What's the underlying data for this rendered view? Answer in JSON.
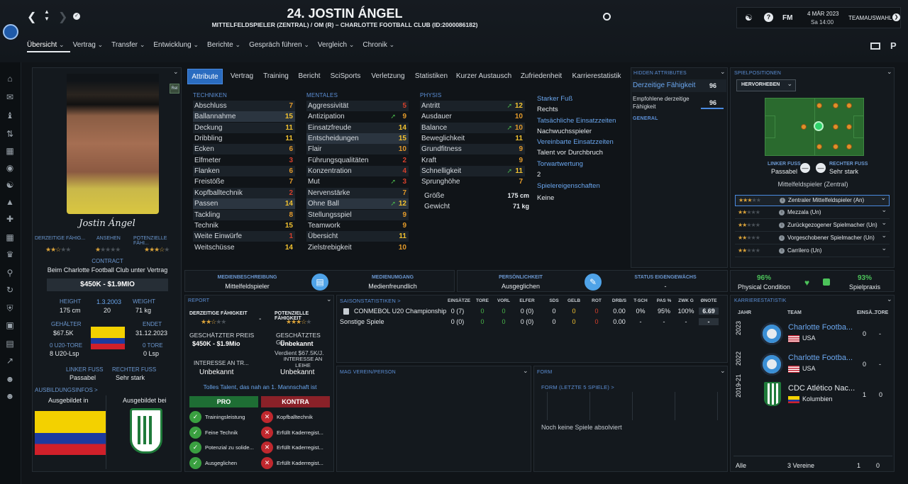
{
  "header": {
    "title": "24. JOSTIN ÁNGEL",
    "subtitle": "MITTELFELDSPIELER (ZENTRAL) / OM (R) – CHARLOTTE FOOTBALL CLUB (ID:2000086182)",
    "fm_label": "FM",
    "date": "4 MÄR 2023",
    "time": "Sa 14:00",
    "team_select": "TEAMAUSWAHL",
    "menu": [
      "Übersicht",
      "Vertrag",
      "Transfer",
      "Entwicklung",
      "Berichte",
      "Gespräch führen",
      "Vergleich",
      "Chronik"
    ]
  },
  "profile": {
    "rel_badge": "Rel",
    "signature": "Jostin Ángel",
    "current_ability_label": "DERZEITIGE FÄHIG...",
    "reputation_label": "ANSEHEN",
    "potential_label": "POTENZIELLE FÄHI...",
    "contract_label": "CONTRACT",
    "contract_text": "Beim Charlotte Football Club unter Vertrag",
    "value": "$450K - $1.9MIO",
    "height_label": "HEIGHT",
    "height": "175 cm",
    "dob": "1.3.2003",
    "age": "20",
    "weight_label": "WEIGHT",
    "weight": "71 kg",
    "wage_label": "GEHÄLTER",
    "wage": "$67.5K",
    "end_label": "ENDET",
    "end": "31.12.2023",
    "u20_goals_label": "0 U20-TORE",
    "u20_apps": "8 U20-Lsp",
    "goals_label": "0 TORE",
    "apps": "0 Lsp",
    "left_foot_label": "LINKER FUSS",
    "left_foot": "Passabel",
    "right_foot_label": "RECHTER FUSS",
    "right_foot": "Sehr stark",
    "training_info_label": "AUSBILDUNGSINFOS >",
    "trained_in": "Ausgebildet in",
    "trained_at": "Ausgebildet bei"
  },
  "tabs": [
    "Attribute",
    "Vertrag",
    "Training",
    "Bericht",
    "SciSports",
    "Verletzung",
    "Statistiken",
    "Kurzer Austausch",
    "Zufriedenheit",
    "Karrierestatistik"
  ],
  "attributes": {
    "technik_label": "TECHNIKEN",
    "technik": [
      {
        "name": "Abschluss",
        "value": "7"
      },
      {
        "name": "Ballannahme",
        "value": "15"
      },
      {
        "name": "Deckung",
        "value": "11"
      },
      {
        "name": "Dribbling",
        "value": "11"
      },
      {
        "name": "Ecken",
        "value": "6"
      },
      {
        "name": "Elfmeter",
        "value": "3"
      },
      {
        "name": "Flanken",
        "value": "6"
      },
      {
        "name": "Freistöße",
        "value": "7"
      },
      {
        "name": "Kopfballtechnik",
        "value": "2"
      },
      {
        "name": "Passen",
        "value": "14"
      },
      {
        "name": "Tackling",
        "value": "8"
      },
      {
        "name": "Technik",
        "value": "15"
      },
      {
        "name": "Weite Einwürfe",
        "value": "1"
      },
      {
        "name": "Weitschüsse",
        "value": "14"
      }
    ],
    "mental_label": "MENTALES",
    "mental": [
      {
        "name": "Aggressivität",
        "value": "5"
      },
      {
        "name": "Antizipation",
        "value": "9"
      },
      {
        "name": "Einsatzfreude",
        "value": "14"
      },
      {
        "name": "Entscheidungen",
        "value": "15"
      },
      {
        "name": "Flair",
        "value": "10"
      },
      {
        "name": "Führungsqualitäten",
        "value": "2"
      },
      {
        "name": "Konzentration",
        "value": "4"
      },
      {
        "name": "Mut",
        "value": "3"
      },
      {
        "name": "Nervenstärke",
        "value": "7"
      },
      {
        "name": "Ohne Ball",
        "value": "12"
      },
      {
        "name": "Stellungsspiel",
        "value": "9"
      },
      {
        "name": "Teamwork",
        "value": "9"
      },
      {
        "name": "Übersicht",
        "value": "11"
      },
      {
        "name": "Zielstrebigkeit",
        "value": "10"
      }
    ],
    "physis_label": "PHYSIS",
    "physis": [
      {
        "name": "Antritt",
        "value": "12"
      },
      {
        "name": "Ausdauer",
        "value": "10"
      },
      {
        "name": "Balance",
        "value": "10"
      },
      {
        "name": "Beweglichkeit",
        "value": "11"
      },
      {
        "name": "Grundfitness",
        "value": "9"
      },
      {
        "name": "Kraft",
        "value": "9"
      },
      {
        "name": "Schnelligkeit",
        "value": "11"
      },
      {
        "name": "Sprunghöhe",
        "value": "7"
      }
    ],
    "size_label": "Größe",
    "size": "175 cm",
    "weight_label": "Gewicht",
    "weight": "71 kg",
    "strong_foot_label": "Starker Fuß",
    "strong_foot": "Rechts",
    "actual_apps_label": "Tatsächliche Einsatzzeiten",
    "actual_apps": "Nachwuchsspieler",
    "agreed_apps_label": "Vereinbarte Einsatzzeiten",
    "agreed_apps": "Talent vor Durchbruch",
    "gk_rating_label": "Torwartwertung",
    "gk_rating": "2",
    "traits_label": "Spielereigenschaften",
    "traits": "Keine"
  },
  "hidden": {
    "label": "HIDDEN ATTRIBUTES",
    "current_label": "Derzeitige Fähigkeit",
    "current": "96",
    "rec_label": "Empfohlene derzeitige Fähigkeit",
    "rec": "96",
    "general": "GENERAL"
  },
  "positions": {
    "label": "SPIELPOSITIONEN",
    "highlight_btn": "HERVORHEBEN",
    "left_foot_label": "LINKER FUSS",
    "left_foot": "Passabel",
    "right_foot_label": "RECHTER FUSS",
    "right_foot": "Sehr stark",
    "role": "Mittelfeldspieler (Zentral)",
    "roles": [
      "Zentraler Mittelfeldspieler (An)",
      "Mezzala (Un)",
      "Zurückgezogener Spielmacher (Un)",
      "Vorgeschobener Spielmacher (Un)",
      "Carrilero (Un)"
    ]
  },
  "media": {
    "desc_label": "MEDIENBESCHREIBUNG",
    "desc": "Mittelfeldspieler",
    "handling_label": "MEDIENUMGANG",
    "handling": "Medienfreundlich",
    "personality_label": "PERSÖNLICHKEIT",
    "personality": "Ausgeglichen",
    "homegrown_label": "STATUS EIGENGEWÄCHS",
    "homegrown": "-"
  },
  "condition": {
    "physical": "96%",
    "physical_label": "Physical Condition",
    "practice": "93%",
    "practice_label": "Spielpraxis"
  },
  "report": {
    "label": "REPORT",
    "ca_label": "DERZEITIGE FÄHIGKEIT",
    "pa_label": "POTENZIELLE FÄHIGKEIT",
    "dash": "-",
    "est_price_label": "GESCHÄTZTER PREIS",
    "est_price": "$450K - $1.9Mio",
    "est_wage_label": "GESCHÄTZTES GE...",
    "est_wage": "Unbekannt",
    "est_wage_sub": "Verdient $67.5K/J.",
    "interest_transfer_label": "INTERESSE AN TR...",
    "interest_transfer": "Unbekannt",
    "interest_loan_label": "INTERESSE AN LEIHE",
    "interest_loan": "Unbekannt",
    "summary": "Tolles Talent, das nah an 1. Mannschaft ist",
    "pro_label": "PRO",
    "contra_label": "KONTRA",
    "pro": [
      "Trainingsleistung",
      "Feine Technik",
      "Potenzial zu solide...",
      "Ausgeglichen"
    ],
    "contra": [
      "Kopfballtechnik",
      "Erfüllt Kaderregist...",
      "Erfüllt Kaderregist...",
      "Erfüllt Kaderregist..."
    ]
  },
  "season": {
    "label": "SAISONSTATISTIKEN >",
    "headers": [
      "EINSÄTZE",
      "TORE",
      "VORL",
      "ELFER",
      "SDS",
      "GELB",
      "ROT",
      "DRB/S",
      "T-SCH",
      "PAS %",
      "ZWK G",
      "ØNOTE"
    ],
    "rows": [
      {
        "name": "CONMEBOL U20 Championship",
        "values": [
          "0 (7)",
          "0",
          "0",
          "0 (0)",
          "0",
          "0",
          "0",
          "0.00",
          "0%",
          "95%",
          "100%",
          "6.69"
        ]
      },
      {
        "name": "Sonstige Spiele",
        "values": [
          "0 (0)",
          "0",
          "0",
          "0 (0)",
          "0",
          "0",
          "0",
          "0.00",
          "-",
          "-",
          "-",
          "-"
        ]
      }
    ]
  },
  "fav": {
    "label": "MAG VEREIN/PERSON"
  },
  "form": {
    "label": "FORM",
    "sub": "FORM (LETZTE 5 SPIELE) >",
    "empty": "Noch keine Spiele absolviert"
  },
  "career": {
    "label": "KARRIERESTATISTIK",
    "h_year": "JAHR",
    "h_team": "TEAM",
    "h_apps": "EINSÄ...",
    "h_goals": "TORE",
    "rows": [
      {
        "year": "2023",
        "team": "Charlotte Footba...",
        "country": "USA",
        "apps": "0",
        "goals": "-"
      },
      {
        "year": "2022",
        "team": "Charlotte Footba...",
        "country": "USA",
        "apps": "0",
        "goals": "-"
      },
      {
        "year": "2019-21",
        "team": "CDC Atlético Nac...",
        "country": "Kolumbien",
        "apps": "1",
        "goals": "0"
      }
    ],
    "total_label": "Alle",
    "total_clubs": "3 Vereine",
    "total_apps": "1",
    "total_goals": "0"
  }
}
